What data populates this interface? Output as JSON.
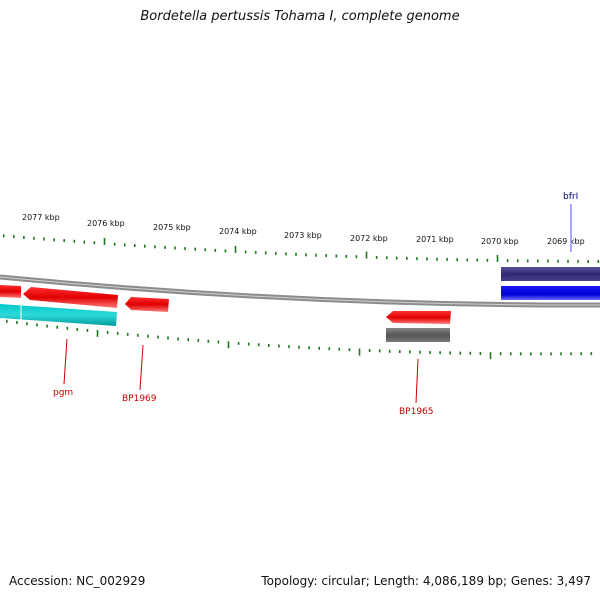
{
  "title": "Bordetella pertussis Tohama I, complete genome",
  "footer": {
    "accession": "Accession: NC_002929",
    "topology": "Topology: circular; Length: 4,086,189 bp; Genes: 3,497"
  },
  "scale": {
    "labels": [
      "2077 kbp",
      "2076 kbp",
      "2075 kbp",
      "2074 kbp",
      "2073 kbp",
      "2072 kbp",
      "2071 kbp",
      "2070 kbp",
      "2069 kbp"
    ]
  },
  "gene_labels": [
    {
      "name": "pgm",
      "color": "#cc0000"
    },
    {
      "name": "BP1969",
      "color": "#cc0000"
    },
    {
      "name": "BP1965",
      "color": "#cc0000"
    },
    {
      "name": "bfrI",
      "color": "#000080"
    }
  ],
  "colors": {
    "forward_cds": "#e60000",
    "cds_light": "#00bfbf",
    "cds_grey": "#555555",
    "cds_navy": "#3a2f80",
    "cds_blue": "#0000e6",
    "backbone": "#8c8c8c",
    "ticks": "#1a7a1a"
  }
}
